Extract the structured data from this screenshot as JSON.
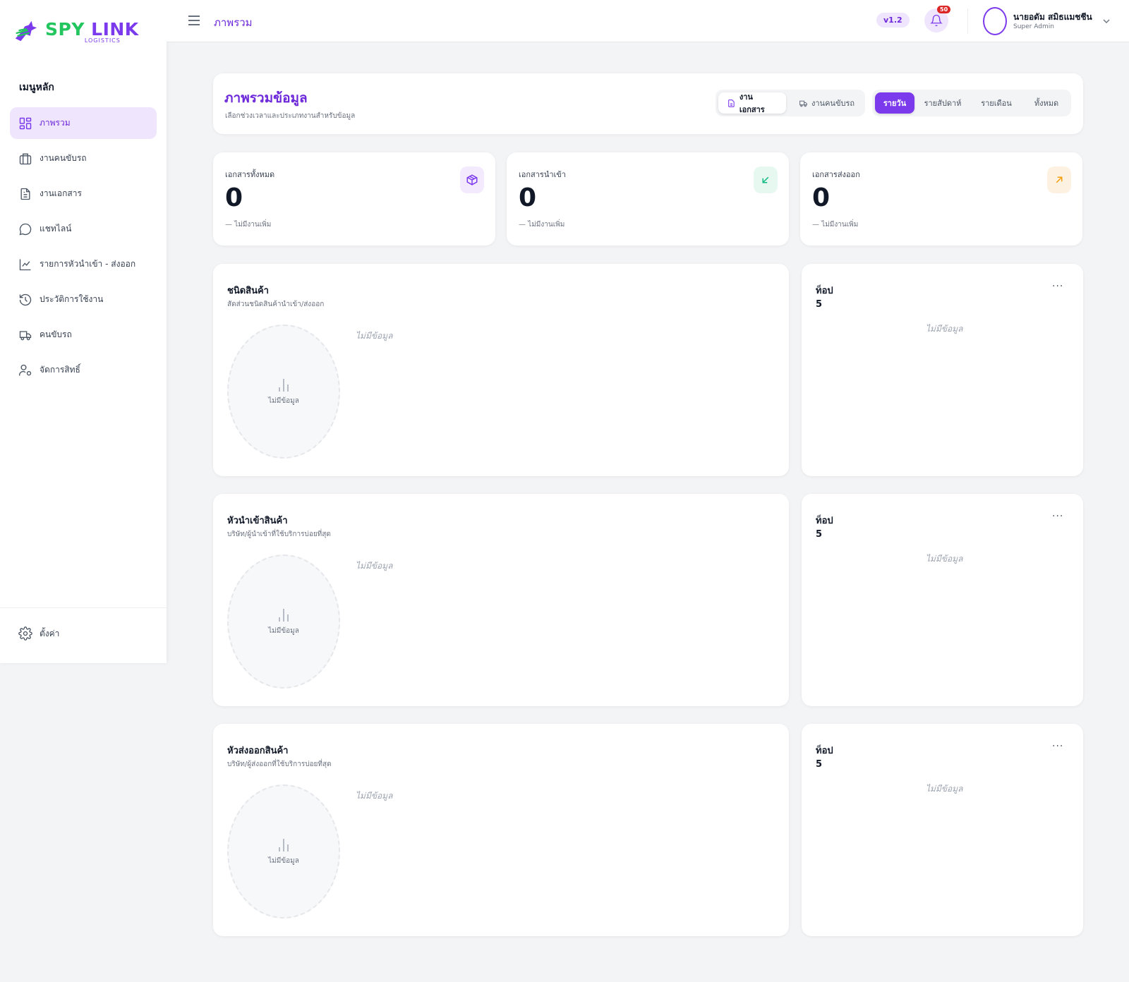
{
  "brand": {
    "name_part1": "SPY ",
    "name_part2": "LINK",
    "sub": "LOGISTICS"
  },
  "sidebar": {
    "heading": "เมนูหลัก",
    "items": [
      {
        "label": "ภาพรวม",
        "icon": "dashboard-icon",
        "active": true
      },
      {
        "label": "งานคนขับรถ",
        "icon": "briefcase-icon"
      },
      {
        "label": "งานเอกสาร",
        "icon": "document-icon"
      },
      {
        "label": "แชทไลน์",
        "icon": "chat-icon"
      },
      {
        "label": "รายการหัวนำเข้า - ส่งออก",
        "icon": "line-chart-icon"
      },
      {
        "label": "ประวัติการใช้งาน",
        "icon": "history-icon"
      },
      {
        "label": "คนขับรถ",
        "icon": "truck-icon"
      },
      {
        "label": "จัดการสิทธิ์",
        "icon": "user-settings-icon"
      }
    ],
    "settings_label": "ตั้งค่า"
  },
  "header": {
    "breadcrumb": "ภาพรวม",
    "version": "v1.2",
    "notification_count": "50",
    "user_name": "นายอดัม สมิธแมชชีน",
    "user_role": "Super Admin"
  },
  "overview": {
    "title": "ภาพรวมข้อมูล",
    "subtitle": "เลือกช่วงเวลาและประเภทงานสำหรับข้อมูล",
    "job_types": [
      "งานเอกสาร",
      "งานคนขับรถ"
    ],
    "selected_job_type": "งานเอกสาร",
    "periods": [
      "รายวัน",
      "รายสัปดาห์",
      "รายเดือน",
      "ทั้งหมด"
    ],
    "selected_period": "รายวัน"
  },
  "stats": [
    {
      "label": "เอกสารทั้งหมด",
      "value": "0",
      "note": "— ไม่มีงานเพิ่ม",
      "icon": "box-icon",
      "color": "#7c3aed",
      "bg": "#f3eafe"
    },
    {
      "label": "เอกสารนำเข้า",
      "value": "0",
      "note": "— ไม่มีงานเพิ่ม",
      "icon": "arrow-down-left-icon",
      "color": "#10b981",
      "bg": "#e7f8f1"
    },
    {
      "label": "เอกสารส่งออก",
      "value": "0",
      "note": "— ไม่มีงานเพิ่ม",
      "icon": "arrow-up-right-icon",
      "color": "#f59e0b",
      "bg": "#fdf1e2"
    }
  ],
  "charts": [
    {
      "title": "ชนิดสินค้า",
      "subtitle": "สัดส่วนชนิดสินค้านำเข้า/ส่งออก",
      "placeholder": "ไม่มีข้อมูล",
      "empty_label": "ไม่มีข้อมูล"
    },
    {
      "title": "หัวนำเข้าสินค้า",
      "subtitle": "บริษัท/ผู้นำเข้าที่ใช้บริการบ่อยที่สุด",
      "placeholder": "ไม่มีข้อมูล",
      "empty_label": "ไม่มีข้อมูล"
    },
    {
      "title": "หัวส่งออกสินค้า",
      "subtitle": "บริษัท/ผู้ส่งออกที่ใช้บริการบ่อยที่สุด",
      "placeholder": "ไม่มีข้อมูล",
      "empty_label": "ไม่มีข้อมูล"
    }
  ],
  "top_cards": [
    {
      "label": "ท็อป",
      "number": "5",
      "more": "···",
      "placeholder": "ไม่มีข้อมูล"
    },
    {
      "label": "ท็อป",
      "number": "5",
      "more": "···",
      "placeholder": "ไม่มีข้อมูล"
    },
    {
      "label": "ท็อป",
      "number": "5",
      "more": "···",
      "placeholder": "ไม่มีข้อมูล"
    }
  ],
  "colors": {
    "accent": "#7c3aed",
    "brand_green": "#22c55e",
    "active_bg": "#efe6fd",
    "badge": "#dc2626"
  }
}
